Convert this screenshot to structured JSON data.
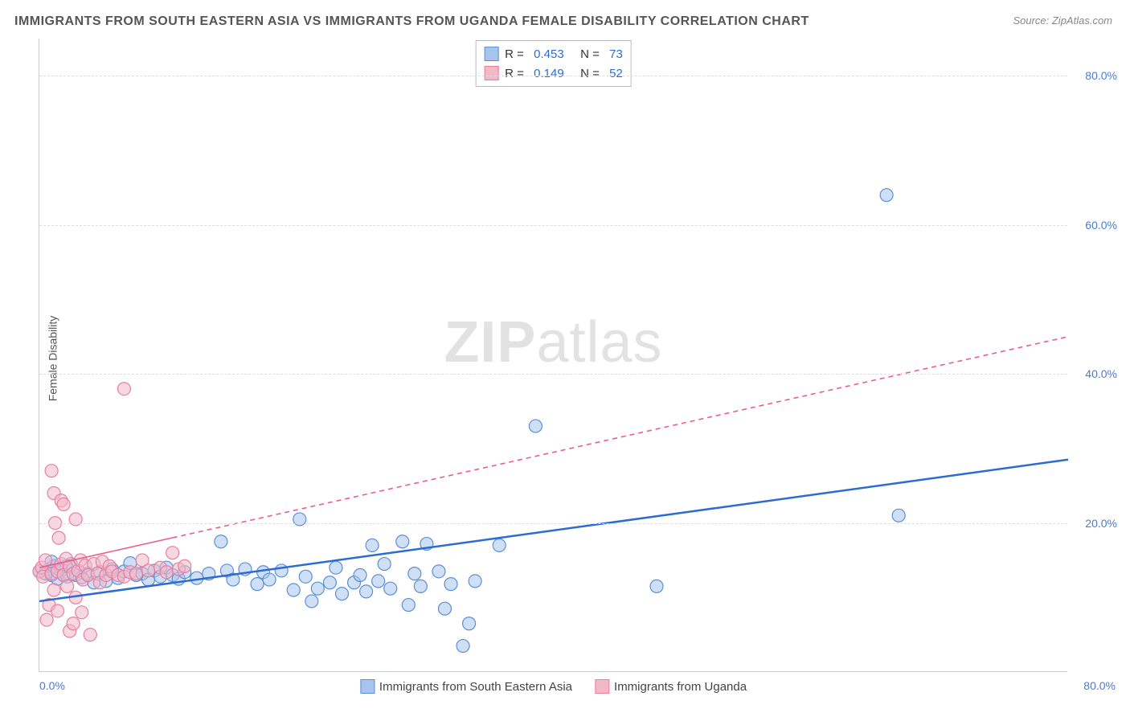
{
  "title": "IMMIGRANTS FROM SOUTH EASTERN ASIA VS IMMIGRANTS FROM UGANDA FEMALE DISABILITY CORRELATION CHART",
  "source": "Source: ZipAtlas.com",
  "y_axis_label": "Female Disability",
  "watermark_bold": "ZIP",
  "watermark_rest": "atlas",
  "chart": {
    "type": "scatter",
    "xlim": [
      0,
      85
    ],
    "ylim": [
      0,
      85
    ],
    "y_ticks": [
      20,
      40,
      60,
      80
    ],
    "y_tick_labels": [
      "20.0%",
      "40.0%",
      "60.0%",
      "80.0%"
    ],
    "x_tick_min_label": "0.0%",
    "x_tick_max_label": "80.0%",
    "grid_color": "#dddddd",
    "axis_color": "#cccccc",
    "background_color": "#ffffff",
    "marker_radius": 8,
    "marker_opacity": 0.55,
    "series": [
      {
        "name": "Immigrants from South Eastern Asia",
        "fill_color": "#a7c5ec",
        "stroke_color": "#5b8fd6",
        "trend_color": "#2b6cd4",
        "trend_dash": "none",
        "trend_width": 2.5,
        "trend": {
          "x1": 0,
          "y1": 9.5,
          "x2": 85,
          "y2": 28.5
        },
        "R": "0.453",
        "N": "73",
        "points": [
          [
            0,
            13.5
          ],
          [
            0.5,
            13.2
          ],
          [
            0.8,
            13.8
          ],
          [
            1,
            13
          ],
          [
            1.2,
            14.2
          ],
          [
            1.5,
            12.5
          ],
          [
            1.8,
            13.6
          ],
          [
            2,
            13
          ],
          [
            2.3,
            12.8
          ],
          [
            2.6,
            14.5
          ],
          [
            3,
            13
          ],
          [
            3.5,
            12.7
          ],
          [
            4,
            13.2
          ],
          [
            4.5,
            12
          ],
          [
            5,
            13.4
          ],
          [
            5.5,
            12.2
          ],
          [
            6,
            13.8
          ],
          [
            6.5,
            12.6
          ],
          [
            7,
            13.5
          ],
          [
            7.5,
            14.6
          ],
          [
            8,
            13
          ],
          [
            8.5,
            13.2
          ],
          [
            9,
            12.4
          ],
          [
            9.5,
            13.6
          ],
          [
            10,
            12.8
          ],
          [
            10.5,
            14
          ],
          [
            11,
            13
          ],
          [
            11.5,
            12.5
          ],
          [
            12,
            13.4
          ],
          [
            13,
            12.6
          ],
          [
            14,
            13.2
          ],
          [
            15,
            17.5
          ],
          [
            15.5,
            13.6
          ],
          [
            16,
            12.4
          ],
          [
            17,
            13.8
          ],
          [
            18,
            11.8
          ],
          [
            18.5,
            13.4
          ],
          [
            19,
            12.4
          ],
          [
            20,
            13.6
          ],
          [
            21,
            11
          ],
          [
            21.5,
            20.5
          ],
          [
            22,
            12.8
          ],
          [
            22.5,
            9.5
          ],
          [
            23,
            11.2
          ],
          [
            24,
            12
          ],
          [
            24.5,
            14
          ],
          [
            25,
            10.5
          ],
          [
            26,
            12
          ],
          [
            26.5,
            13
          ],
          [
            27,
            10.8
          ],
          [
            27.5,
            17
          ],
          [
            28,
            12.2
          ],
          [
            28.5,
            14.5
          ],
          [
            29,
            11.2
          ],
          [
            30,
            17.5
          ],
          [
            30.5,
            9
          ],
          [
            31,
            13.2
          ],
          [
            31.5,
            11.5
          ],
          [
            32,
            17.2
          ],
          [
            33,
            13.5
          ],
          [
            33.5,
            8.5
          ],
          [
            34,
            11.8
          ],
          [
            35,
            3.5
          ],
          [
            35.5,
            6.5
          ],
          [
            36,
            12.2
          ],
          [
            38,
            17
          ],
          [
            41,
            33
          ],
          [
            51,
            11.5
          ],
          [
            70,
            64
          ],
          [
            71,
            21
          ],
          [
            1,
            14.8
          ],
          [
            2.2,
            14.2
          ],
          [
            3.2,
            13.6
          ]
        ]
      },
      {
        "name": "Immigrants from Uganda",
        "fill_color": "#f2b8c6",
        "stroke_color": "#e87ea0",
        "trend_color": "#e95f8a",
        "trend_dash": "6,5",
        "trend_width": 1.6,
        "trend_solid_until_x": 11,
        "trend": {
          "x1": 0,
          "y1": 14,
          "x2": 85,
          "y2": 45
        },
        "R": "0.149",
        "N": "52",
        "points": [
          [
            0,
            13.5
          ],
          [
            0.2,
            14
          ],
          [
            0.3,
            12.8
          ],
          [
            0.5,
            15
          ],
          [
            0.6,
            7
          ],
          [
            0.8,
            9
          ],
          [
            1,
            27
          ],
          [
            1,
            13.2
          ],
          [
            1.2,
            24
          ],
          [
            1.2,
            11
          ],
          [
            1.3,
            20
          ],
          [
            1.5,
            13.5
          ],
          [
            1.5,
            8.2
          ],
          [
            1.6,
            18
          ],
          [
            1.8,
            23
          ],
          [
            1.8,
            14.5
          ],
          [
            2,
            13
          ],
          [
            2,
            22.5
          ],
          [
            2.2,
            15.2
          ],
          [
            2.3,
            11.5
          ],
          [
            2.5,
            5.5
          ],
          [
            2.5,
            14.2
          ],
          [
            2.8,
            13.2
          ],
          [
            2.8,
            6.5
          ],
          [
            3,
            20.5
          ],
          [
            3,
            10
          ],
          [
            3.2,
            13.6
          ],
          [
            3.4,
            15
          ],
          [
            3.5,
            8
          ],
          [
            3.6,
            12.4
          ],
          [
            3.8,
            14.3
          ],
          [
            4,
            13
          ],
          [
            4.2,
            5
          ],
          [
            4.5,
            14.5
          ],
          [
            4.8,
            13.2
          ],
          [
            5,
            12
          ],
          [
            5.2,
            14.8
          ],
          [
            5.5,
            13
          ],
          [
            5.8,
            14.2
          ],
          [
            6,
            13.5
          ],
          [
            6.5,
            13
          ],
          [
            7,
            12.8
          ],
          [
            7,
            38
          ],
          [
            7.5,
            13.4
          ],
          [
            8,
            13.2
          ],
          [
            8.5,
            15
          ],
          [
            9,
            13.6
          ],
          [
            10,
            14
          ],
          [
            10.5,
            13.4
          ],
          [
            11,
            16
          ],
          [
            11.5,
            13.8
          ],
          [
            12,
            14.2
          ]
        ]
      }
    ]
  },
  "legend_top": {
    "rows": [
      {
        "swatch_fill": "#a7c5ec",
        "swatch_stroke": "#5b8fd6",
        "r_label": "R =",
        "r_value": "0.453",
        "n_label": "N =",
        "n_value": "73"
      },
      {
        "swatch_fill": "#f2b8c6",
        "swatch_stroke": "#e87ea0",
        "r_label": "R =",
        "r_value": "0.149",
        "n_label": "N =",
        "n_value": "52"
      }
    ]
  },
  "legend_bottom": {
    "items": [
      {
        "swatch_fill": "#a7c5ec",
        "swatch_stroke": "#5b8fd6",
        "label": "Immigrants from South Eastern Asia"
      },
      {
        "swatch_fill": "#f2b8c6",
        "swatch_stroke": "#e87ea0",
        "label": "Immigrants from Uganda"
      }
    ]
  }
}
